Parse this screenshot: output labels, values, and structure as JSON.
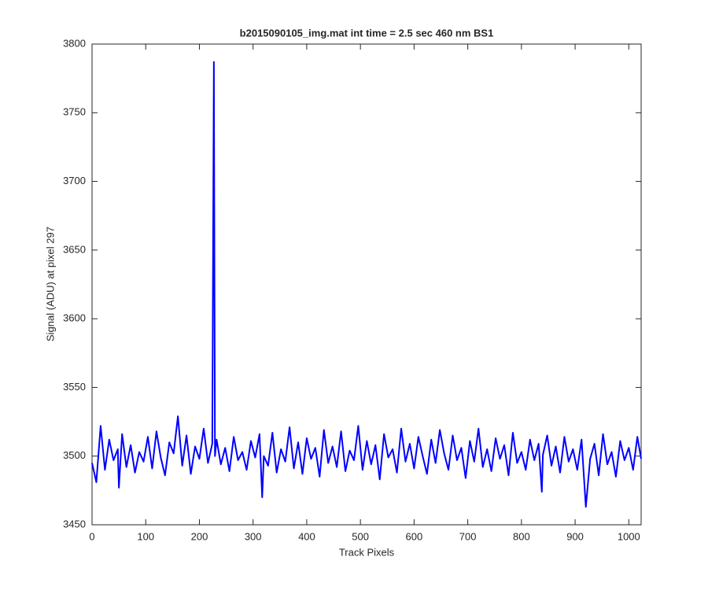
{
  "chart_data": {
    "type": "line",
    "title": "b2015090105_img.mat int time = 2.5 sec  460 nm BS1",
    "x_label": "Track Pixels",
    "y_label": "Signal (ADU) at pixel 297",
    "xlim": [
      0,
      1023
    ],
    "ylim": [
      3450,
      3800
    ],
    "xticks": [
      0,
      100,
      200,
      300,
      400,
      500,
      600,
      700,
      800,
      900,
      1000
    ],
    "yticks": [
      3450,
      3500,
      3550,
      3600,
      3650,
      3700,
      3750,
      3800
    ],
    "grid": false,
    "x": [
      0,
      8,
      16,
      24,
      32,
      40,
      48,
      50,
      56,
      64,
      72,
      80,
      88,
      96,
      104,
      112,
      120,
      128,
      136,
      144,
      152,
      160,
      168,
      176,
      184,
      192,
      200,
      208,
      216,
      224,
      227,
      229,
      232,
      240,
      248,
      256,
      264,
      272,
      280,
      288,
      296,
      304,
      312,
      317,
      320,
      328,
      336,
      344,
      352,
      360,
      368,
      376,
      384,
      392,
      400,
      408,
      416,
      424,
      432,
      440,
      448,
      456,
      464,
      472,
      480,
      488,
      496,
      504,
      512,
      520,
      528,
      536,
      544,
      552,
      560,
      568,
      576,
      584,
      592,
      600,
      608,
      616,
      624,
      632,
      640,
      648,
      656,
      664,
      672,
      680,
      688,
      696,
      704,
      712,
      720,
      728,
      736,
      744,
      752,
      760,
      768,
      776,
      784,
      792,
      800,
      808,
      816,
      824,
      832,
      838,
      840,
      848,
      856,
      864,
      872,
      880,
      888,
      896,
      904,
      912,
      920,
      928,
      936,
      944,
      952,
      960,
      968,
      976,
      984,
      992,
      1000,
      1008,
      1016,
      1023
    ],
    "series": [
      {
        "color": "#0000ff",
        "values": [
          3495,
          3481,
          3522,
          3490,
          3512,
          3497,
          3505,
          3477,
          3516,
          3492,
          3508,
          3488,
          3503,
          3496,
          3514,
          3491,
          3518,
          3499,
          3486,
          3510,
          3502,
          3529,
          3493,
          3515,
          3487,
          3507,
          3498,
          3520,
          3495,
          3509,
          3787,
          3500,
          3512,
          3494,
          3506,
          3489,
          3514,
          3497,
          3503,
          3490,
          3511,
          3499,
          3516,
          3470,
          3500,
          3493,
          3517,
          3488,
          3505,
          3496,
          3521,
          3491,
          3510,
          3487,
          3513,
          3498,
          3506,
          3485,
          3519,
          3495,
          3507,
          3492,
          3518,
          3489,
          3504,
          3497,
          3522,
          3490,
          3511,
          3494,
          3508,
          3483,
          3516,
          3499,
          3505,
          3488,
          3520,
          3496,
          3509,
          3491,
          3514,
          3500,
          3487,
          3512,
          3495,
          3519,
          3502,
          3490,
          3515,
          3497,
          3506,
          3484,
          3511,
          3496,
          3520,
          3492,
          3505,
          3489,
          3513,
          3498,
          3508,
          3486,
          3517,
          3495,
          3503,
          3490,
          3512,
          3497,
          3509,
          3474,
          3501,
          3515,
          3493,
          3507,
          3488,
          3514,
          3496,
          3505,
          3490,
          3512,
          3463,
          3498,
          3509,
          3486,
          3516,
          3494,
          3503,
          3485,
          3511,
          3497,
          3506,
          3490,
          3514,
          3498
        ]
      }
    ]
  }
}
